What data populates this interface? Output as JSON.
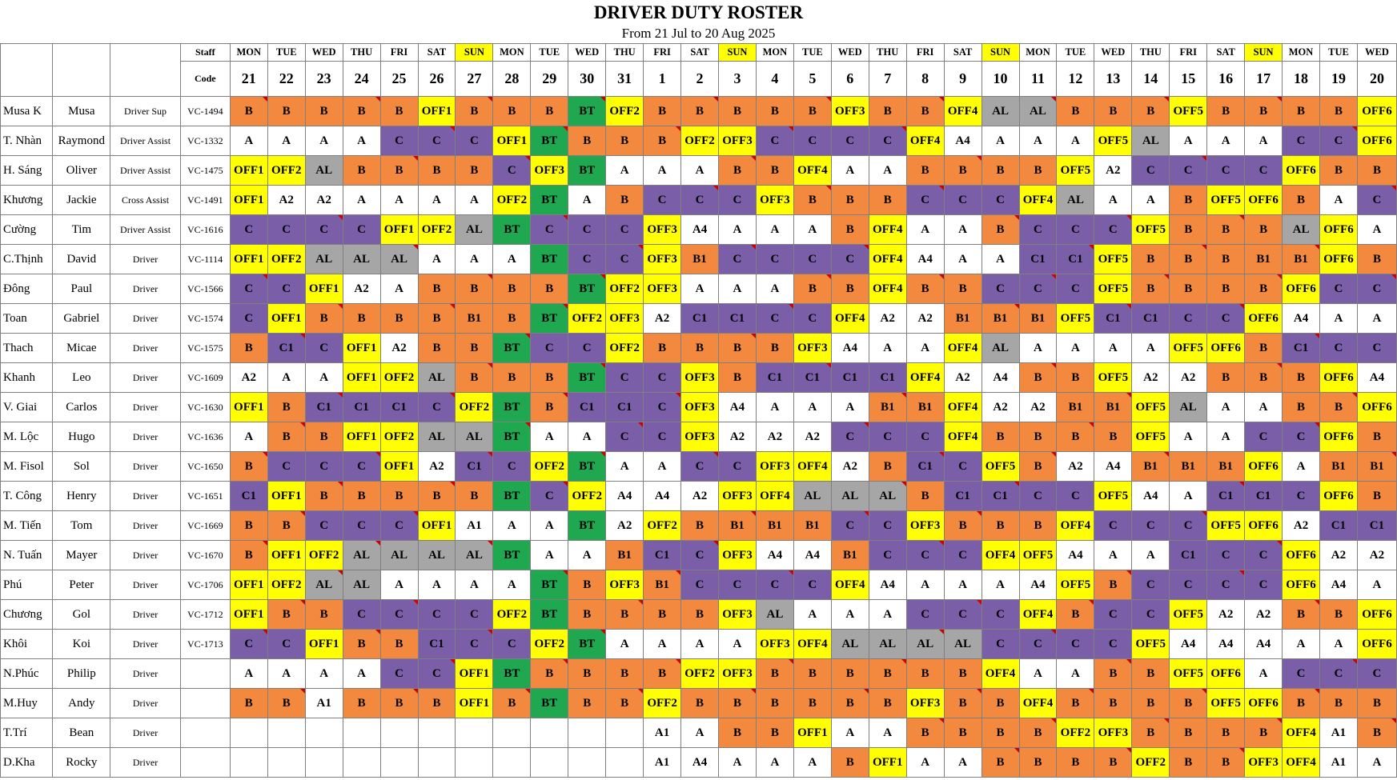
{
  "title": "DRIVER DUTY ROSTER",
  "subtitle": "From 21 Jul to 20 Aug 2025",
  "header": {
    "staff_label": "Staff",
    "code_label": "Code"
  },
  "days": [
    {
      "name": "MON",
      "num": "21"
    },
    {
      "name": "TUE",
      "num": "22"
    },
    {
      "name": "WED",
      "num": "23"
    },
    {
      "name": "THU",
      "num": "24"
    },
    {
      "name": "FRI",
      "num": "25"
    },
    {
      "name": "SAT",
      "num": "26"
    },
    {
      "name": "SUN",
      "num": "27"
    },
    {
      "name": "MON",
      "num": "28"
    },
    {
      "name": "TUE",
      "num": "29"
    },
    {
      "name": "WED",
      "num": "30"
    },
    {
      "name": "THU",
      "num": "31"
    },
    {
      "name": "FRI",
      "num": "1"
    },
    {
      "name": "SAT",
      "num": "2"
    },
    {
      "name": "SUN",
      "num": "3"
    },
    {
      "name": "MON",
      "num": "4"
    },
    {
      "name": "TUE",
      "num": "5"
    },
    {
      "name": "WED",
      "num": "6"
    },
    {
      "name": "THU",
      "num": "7"
    },
    {
      "name": "FRI",
      "num": "8"
    },
    {
      "name": "SAT",
      "num": "9"
    },
    {
      "name": "SUN",
      "num": "10"
    },
    {
      "name": "MON",
      "num": "11"
    },
    {
      "name": "TUE",
      "num": "12"
    },
    {
      "name": "WED",
      "num": "13"
    },
    {
      "name": "THU",
      "num": "14"
    },
    {
      "name": "FRI",
      "num": "15"
    },
    {
      "name": "SAT",
      "num": "16"
    },
    {
      "name": "SUN",
      "num": "17"
    },
    {
      "name": "MON",
      "num": "18"
    },
    {
      "name": "TUE",
      "num": "19"
    },
    {
      "name": "WED",
      "num": "20"
    }
  ],
  "colors": {
    "A": "#ffffff",
    "B": "#f2893f",
    "C": "#7b5ea8",
    "BT": "#1fa84f",
    "AL": "#a6a6a6",
    "OFF": "#ffff00",
    "SUN": "#ffff00"
  },
  "staff": [
    {
      "abbr": "Musa K",
      "name": "Musa",
      "role": "Driver Sup",
      "code": "VC-1494",
      "shifts": [
        "B",
        "B",
        "B",
        "B",
        "B",
        "OFF1",
        "B",
        "B",
        "B",
        "BT",
        "OFF2",
        "B",
        "B",
        "B",
        "B",
        "B",
        "OFF3",
        "B",
        "B",
        "OFF4",
        "AL",
        "AL",
        "B",
        "B",
        "B",
        "OFF5",
        "B",
        "B",
        "B",
        "B",
        "OFF6"
      ]
    },
    {
      "abbr": "T. Nhàn",
      "name": "Raymond",
      "role": "Driver Assist",
      "code": "VC-1332",
      "shifts": [
        "A",
        "A",
        "A",
        "A",
        "C",
        "C",
        "C",
        "OFF1",
        "BT",
        "B",
        "B",
        "B",
        "OFF2",
        "OFF3",
        "C",
        "C",
        "C",
        "C",
        "OFF4",
        "A4",
        "A",
        "A",
        "A",
        "OFF5",
        "AL",
        "A",
        "A",
        "A",
        "C",
        "C",
        "OFF6"
      ]
    },
    {
      "abbr": "H. Sáng",
      "name": "Oliver",
      "role": "Driver Assist",
      "code": "VC-1475",
      "shifts": [
        "OFF1",
        "OFF2",
        "AL",
        "B",
        "B",
        "B",
        "B",
        "C",
        "OFF3",
        "BT",
        "A",
        "A",
        "A",
        "B",
        "B",
        "OFF4",
        "A",
        "A",
        "B",
        "B",
        "B",
        "B",
        "OFF5",
        "A2",
        "C",
        "C",
        "C",
        "C",
        "OFF6",
        "B",
        "B"
      ]
    },
    {
      "abbr": "Khương",
      "name": "Jackie",
      "role": "Cross Assist",
      "code": "VC-1491",
      "shifts": [
        "OFF1",
        "A2",
        "A2",
        "A",
        "A",
        "A",
        "A",
        "OFF2",
        "BT",
        "A",
        "B",
        "C",
        "C",
        "C",
        "OFF3",
        "B",
        "B",
        "B",
        "C",
        "C",
        "C",
        "OFF4",
        "AL",
        "A",
        "A",
        "B",
        "OFF5",
        "OFF6",
        "B",
        "A",
        "C"
      ]
    },
    {
      "abbr": "Cường",
      "name": "Tim",
      "role": "Driver Assist",
      "code": "VC-1616",
      "shifts": [
        "C",
        "C",
        "C",
        "C",
        "OFF1",
        "OFF2",
        "AL",
        "BT",
        "C",
        "C",
        "C",
        "OFF3",
        "A4",
        "A",
        "A",
        "A",
        "B",
        "OFF4",
        "A",
        "A",
        "B",
        "C",
        "C",
        "C",
        "OFF5",
        "B",
        "B",
        "B",
        "AL",
        "OFF6",
        "A"
      ]
    },
    {
      "abbr": "C.Thịnh",
      "name": "David",
      "role": "Driver",
      "code": "VC-1114",
      "shifts": [
        "OFF1",
        "OFF2",
        "AL",
        "AL",
        "AL",
        "A",
        "A",
        "A",
        "BT",
        "C",
        "C",
        "OFF3",
        "B1",
        "C",
        "C",
        "C",
        "C",
        "OFF4",
        "A4",
        "A",
        "A",
        "C1",
        "C1",
        "OFF5",
        "B",
        "B",
        "B",
        "B1",
        "B1",
        "OFF6",
        "B"
      ]
    },
    {
      "abbr": "Đông",
      "name": "Paul",
      "role": "Driver",
      "code": "VC-1566",
      "shifts": [
        "C",
        "C",
        "OFF1",
        "A2",
        "A",
        "B",
        "B",
        "B",
        "B",
        "BT",
        "OFF2",
        "OFF3",
        "A",
        "A",
        "A",
        "B",
        "B",
        "OFF4",
        "B",
        "B",
        "C",
        "C",
        "C",
        "OFF5",
        "B",
        "B",
        "B",
        "B",
        "OFF6",
        "C",
        "C"
      ]
    },
    {
      "abbr": "Toan",
      "name": "Gabriel",
      "role": "Driver",
      "code": "VC-1574",
      "shifts": [
        "C",
        "OFF1",
        "B",
        "B",
        "B",
        "B",
        "B1",
        "B",
        "BT",
        "OFF2",
        "OFF3",
        "A2",
        "C1",
        "C1",
        "C",
        "C",
        "OFF4",
        "A2",
        "A2",
        "B1",
        "B1",
        "B1",
        "OFF5",
        "C1",
        "C1",
        "C",
        "C",
        "OFF6",
        "A4",
        "A",
        "A"
      ]
    },
    {
      "abbr": "Thach",
      "name": "Micae",
      "role": "Driver",
      "code": "VC-1575",
      "shifts": [
        "B",
        "C1",
        "C",
        "OFF1",
        "A2",
        "B",
        "B",
        "BT",
        "C",
        "C",
        "OFF2",
        "B",
        "B",
        "B",
        "B",
        "OFF3",
        "A4",
        "A",
        "A",
        "OFF4",
        "AL",
        "A",
        "A",
        "A",
        "A",
        "OFF5",
        "OFF6",
        "B",
        "C1",
        "C",
        "C"
      ]
    },
    {
      "abbr": "Khanh",
      "name": "Leo",
      "role": "Driver",
      "code": "VC-1609",
      "shifts": [
        "A2",
        "A",
        "A",
        "OFF1",
        "OFF2",
        "AL",
        "B",
        "B",
        "B",
        "BT",
        "C",
        "C",
        "OFF3",
        "B",
        "C1",
        "C1",
        "C1",
        "C1",
        "OFF4",
        "A2",
        "A4",
        "B",
        "B",
        "OFF5",
        "A2",
        "A2",
        "B",
        "B",
        "B",
        "OFF6",
        "A4"
      ]
    },
    {
      "abbr": "V. Giai",
      "name": "Carlos",
      "role": "Driver",
      "code": "VC-1630",
      "shifts": [
        "OFF1",
        "B",
        "C1",
        "C1",
        "C1",
        "C",
        "OFF2",
        "BT",
        "B",
        "C1",
        "C1",
        "C",
        "OFF3",
        "A4",
        "A",
        "A",
        "A",
        "B1",
        "B1",
        "OFF4",
        "A2",
        "A2",
        "B1",
        "B1",
        "OFF5",
        "AL",
        "A",
        "A",
        "B",
        "B",
        "OFF6"
      ]
    },
    {
      "abbr": "M. Lộc",
      "name": "Hugo",
      "role": "Driver",
      "code": "VC-1636",
      "shifts": [
        "A",
        "B",
        "B",
        "OFF1",
        "OFF2",
        "AL",
        "AL",
        "BT",
        "A",
        "A",
        "C",
        "C",
        "OFF3",
        "A2",
        "A2",
        "A2",
        "C",
        "C",
        "C",
        "OFF4",
        "B",
        "B",
        "B",
        "B",
        "OFF5",
        "A",
        "A",
        "C",
        "C",
        "OFF6",
        "B"
      ]
    },
    {
      "abbr": "M. Fisol",
      "name": "Sol",
      "role": "Driver",
      "code": "VC-1650",
      "shifts": [
        "B",
        "C",
        "C",
        "C",
        "OFF1",
        "A2",
        "C1",
        "C",
        "OFF2",
        "BT",
        "A",
        "A",
        "C",
        "C",
        "OFF3",
        "OFF4",
        "A2",
        "B",
        "C1",
        "C",
        "OFF5",
        "B",
        "A2",
        "A4",
        "B1",
        "B1",
        "B1",
        "OFF6",
        "A",
        "B1",
        "B1"
      ]
    },
    {
      "abbr": "T. Công",
      "name": "Henry",
      "role": "Driver",
      "code": "VC-1651",
      "shifts": [
        "C1",
        "OFF1",
        "B",
        "B",
        "B",
        "B",
        "B",
        "BT",
        "C",
        "OFF2",
        "A4",
        "A4",
        "A2",
        "OFF3",
        "OFF4",
        "AL",
        "AL",
        "AL",
        "B",
        "C1",
        "C1",
        "C",
        "C",
        "OFF5",
        "A4",
        "A",
        "C1",
        "C1",
        "C",
        "OFF6",
        "B"
      ]
    },
    {
      "abbr": "M. Tiến",
      "name": "Tom",
      "role": "Driver",
      "code": "VC-1669",
      "shifts": [
        "B",
        "B",
        "C",
        "C",
        "C",
        "OFF1",
        "A1",
        "A",
        "A",
        "BT",
        "A2",
        "OFF2",
        "B",
        "B1",
        "B1",
        "B1",
        "C",
        "C",
        "OFF3",
        "B",
        "B",
        "B",
        "OFF4",
        "C",
        "C",
        "C",
        "OFF5",
        "OFF6",
        "A2",
        "C1",
        "C1"
      ]
    },
    {
      "abbr": "N. Tuấn",
      "name": "Mayer",
      "role": "Driver",
      "code": "VC-1670",
      "shifts": [
        "B",
        "OFF1",
        "OFF2",
        "AL",
        "AL",
        "AL",
        "AL",
        "BT",
        "A",
        "A",
        "B1",
        "C1",
        "C",
        "OFF3",
        "A4",
        "A4",
        "B1",
        "C",
        "C",
        "C",
        "OFF4",
        "OFF5",
        "A4",
        "A",
        "A",
        "C1",
        "C",
        "C",
        "OFF6",
        "A2",
        "A2"
      ]
    },
    {
      "abbr": "Phú",
      "name": "Peter",
      "role": "Driver",
      "code": "VC-1706",
      "shifts": [
        "OFF1",
        "OFF2",
        "AL",
        "AL",
        "A",
        "A",
        "A",
        "A",
        "BT",
        "B",
        "OFF3",
        "B1",
        "C",
        "C",
        "C",
        "C",
        "OFF4",
        "A4",
        "A",
        "A",
        "A",
        "A4",
        "OFF5",
        "B",
        "C",
        "C",
        "C",
        "C",
        "OFF6",
        "A4",
        "A"
      ]
    },
    {
      "abbr": "Chương",
      "name": "Gol",
      "role": "Driver",
      "code": "VC-1712",
      "shifts": [
        "OFF1",
        "B",
        "B",
        "C",
        "C",
        "C",
        "C",
        "OFF2",
        "BT",
        "B",
        "B",
        "B",
        "B",
        "OFF3",
        "AL",
        "A",
        "A",
        "A",
        "C",
        "C",
        "C",
        "OFF4",
        "B",
        "C",
        "C",
        "OFF5",
        "A2",
        "A2",
        "B",
        "B",
        "OFF6"
      ]
    },
    {
      "abbr": "Khôi",
      "name": "Koi",
      "role": "Driver",
      "code": "VC-1713",
      "shifts": [
        "C",
        "C",
        "OFF1",
        "B",
        "B",
        "C1",
        "C",
        "C",
        "OFF2",
        "BT",
        "A",
        "A",
        "A",
        "A",
        "OFF3",
        "OFF4",
        "AL",
        "AL",
        "AL",
        "AL",
        "C",
        "C",
        "C",
        "C",
        "OFF5",
        "A4",
        "A4",
        "A4",
        "A",
        "A",
        "OFF6"
      ]
    },
    {
      "abbr": "N.Phúc",
      "name": "Philip",
      "role": "Driver",
      "code": "",
      "shifts": [
        "A",
        "A",
        "A",
        "A",
        "C",
        "C",
        "OFF1",
        "BT",
        "B",
        "B",
        "B",
        "B",
        "OFF2",
        "OFF3",
        "B",
        "B",
        "B",
        "B",
        "B",
        "B",
        "OFF4",
        "A",
        "A",
        "B",
        "B",
        "OFF5",
        "OFF6",
        "A",
        "C",
        "C",
        "C"
      ]
    },
    {
      "abbr": "M.Huy",
      "name": "Andy",
      "role": "Driver",
      "code": "",
      "shifts": [
        "B",
        "B",
        "A1",
        "B",
        "B",
        "B",
        "OFF1",
        "B",
        "BT",
        "B",
        "B",
        "OFF2",
        "B",
        "B",
        "B",
        "B",
        "B",
        "B",
        "OFF3",
        "B",
        "B",
        "OFF4",
        "B",
        "B",
        "B",
        "B",
        "OFF5",
        "OFF6",
        "B",
        "B",
        "B"
      ]
    },
    {
      "abbr": "T.Trí",
      "name": "Bean",
      "role": "Driver",
      "code": "",
      "shifts": [
        "",
        "",
        "",
        "",
        "",
        "",
        "",
        "",
        "",
        "",
        "",
        "A1",
        "A",
        "B",
        "B",
        "OFF1",
        "A",
        "A",
        "B",
        "B",
        "B",
        "B",
        "OFF2",
        "OFF3",
        "B",
        "B",
        "B",
        "B",
        "OFF4",
        "A1",
        "B"
      ]
    },
    {
      "abbr": "D.Kha",
      "name": "Rocky",
      "role": "Driver",
      "code": "",
      "shifts": [
        "",
        "",
        "",
        "",
        "",
        "",
        "",
        "",
        "",
        "",
        "",
        "A1",
        "A4",
        "A",
        "A",
        "A",
        "B",
        "OFF1",
        "A",
        "A",
        "B",
        "B",
        "B",
        "B",
        "OFF2",
        "B",
        "B",
        "OFF3",
        "OFF4",
        "A1",
        "A"
      ]
    }
  ]
}
